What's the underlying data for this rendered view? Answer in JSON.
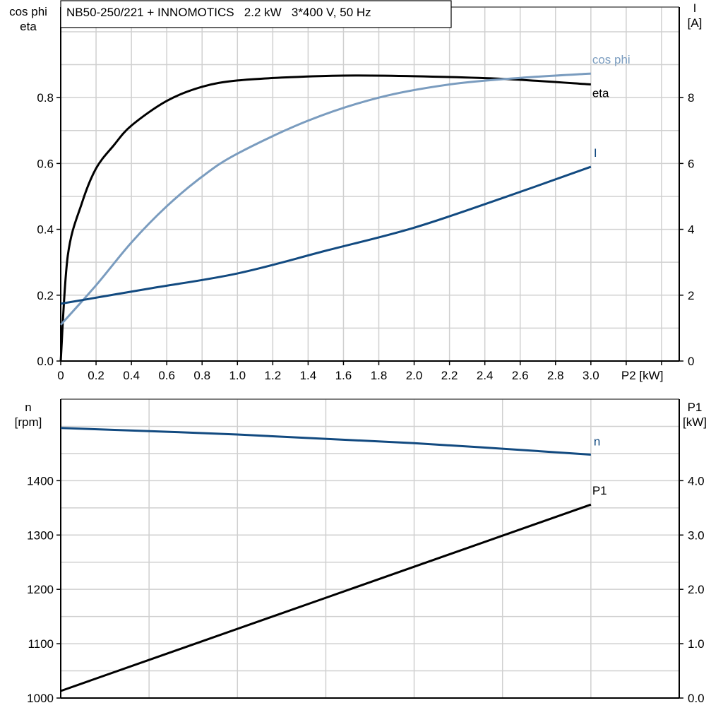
{
  "chart_data": [
    {
      "type": "line",
      "title": "NB50-250/221 + INNOMOTICS   2.2 kW   3*400 V, 50 Hz",
      "xlabel": "P2 [kW]",
      "ylabel_left": [
        "cos phi",
        "eta"
      ],
      "ylabel_right": [
        "I",
        "[A]"
      ],
      "xlim": [
        0,
        3.5
      ],
      "ylim_left": [
        0,
        1.075
      ],
      "ylim_right": [
        0,
        10.75
      ],
      "xticks": [
        "0",
        "0.2",
        "0.4",
        "0.6",
        "0.8",
        "1.0",
        "1.2",
        "1.4",
        "1.6",
        "1.8",
        "2.0",
        "2.2",
        "2.4",
        "2.6",
        "2.8",
        "3.0"
      ],
      "yticks_left": [
        "0.0",
        "0.2",
        "0.4",
        "0.6",
        "0.8"
      ],
      "yticks_right": [
        "0",
        "2",
        "4",
        "6",
        "8"
      ],
      "grid": true,
      "series": [
        {
          "name": "eta",
          "axis": "left",
          "color": "#000000",
          "x": [
            0,
            0.04,
            0.12,
            0.2,
            0.3,
            0.4,
            0.6,
            0.8,
            1.0,
            1.3,
            1.6,
            2.0,
            2.5,
            3.0
          ],
          "y": [
            0,
            0.32,
            0.48,
            0.585,
            0.655,
            0.715,
            0.79,
            0.833,
            0.852,
            0.862,
            0.867,
            0.865,
            0.857,
            0.84
          ]
        },
        {
          "name": "cos phi",
          "axis": "left",
          "color": "#7a9cbf",
          "x": [
            0,
            0.2,
            0.4,
            0.6,
            0.8,
            1.0,
            1.4,
            1.8,
            2.2,
            2.6,
            3.0
          ],
          "y": [
            0.11,
            0.23,
            0.36,
            0.47,
            0.56,
            0.63,
            0.73,
            0.8,
            0.84,
            0.86,
            0.873
          ]
        },
        {
          "name": "I",
          "axis": "right",
          "color": "#124a80",
          "x": [
            0,
            0.5,
            1.0,
            1.5,
            2.0,
            2.5,
            3.0
          ],
          "y": [
            1.74,
            2.2,
            2.66,
            3.35,
            4.05,
            4.95,
            5.9
          ]
        }
      ]
    },
    {
      "type": "line",
      "xlim": [
        0,
        3.5
      ],
      "ylabel_left": [
        "n",
        "[rpm]"
      ],
      "ylabel_right": [
        "P1",
        "[kW]"
      ],
      "ylim_left": [
        1000,
        1550
      ],
      "ylim_right": [
        0,
        5.5
      ],
      "yticks_left": [
        "1000",
        "1100",
        "1200",
        "1300",
        "1400"
      ],
      "yticks_right": [
        "0.0",
        "1.0",
        "2.0",
        "3.0",
        "4.0"
      ],
      "grid": true,
      "series": [
        {
          "name": "n",
          "axis": "left",
          "color": "#124a80",
          "x": [
            0,
            1.0,
            2.0,
            3.0
          ],
          "y": [
            1497,
            1485,
            1469,
            1448
          ]
        },
        {
          "name": "P1",
          "axis": "right",
          "color": "#000000",
          "x": [
            0,
            3.0
          ],
          "y": [
            0.13,
            3.56
          ]
        }
      ]
    }
  ]
}
